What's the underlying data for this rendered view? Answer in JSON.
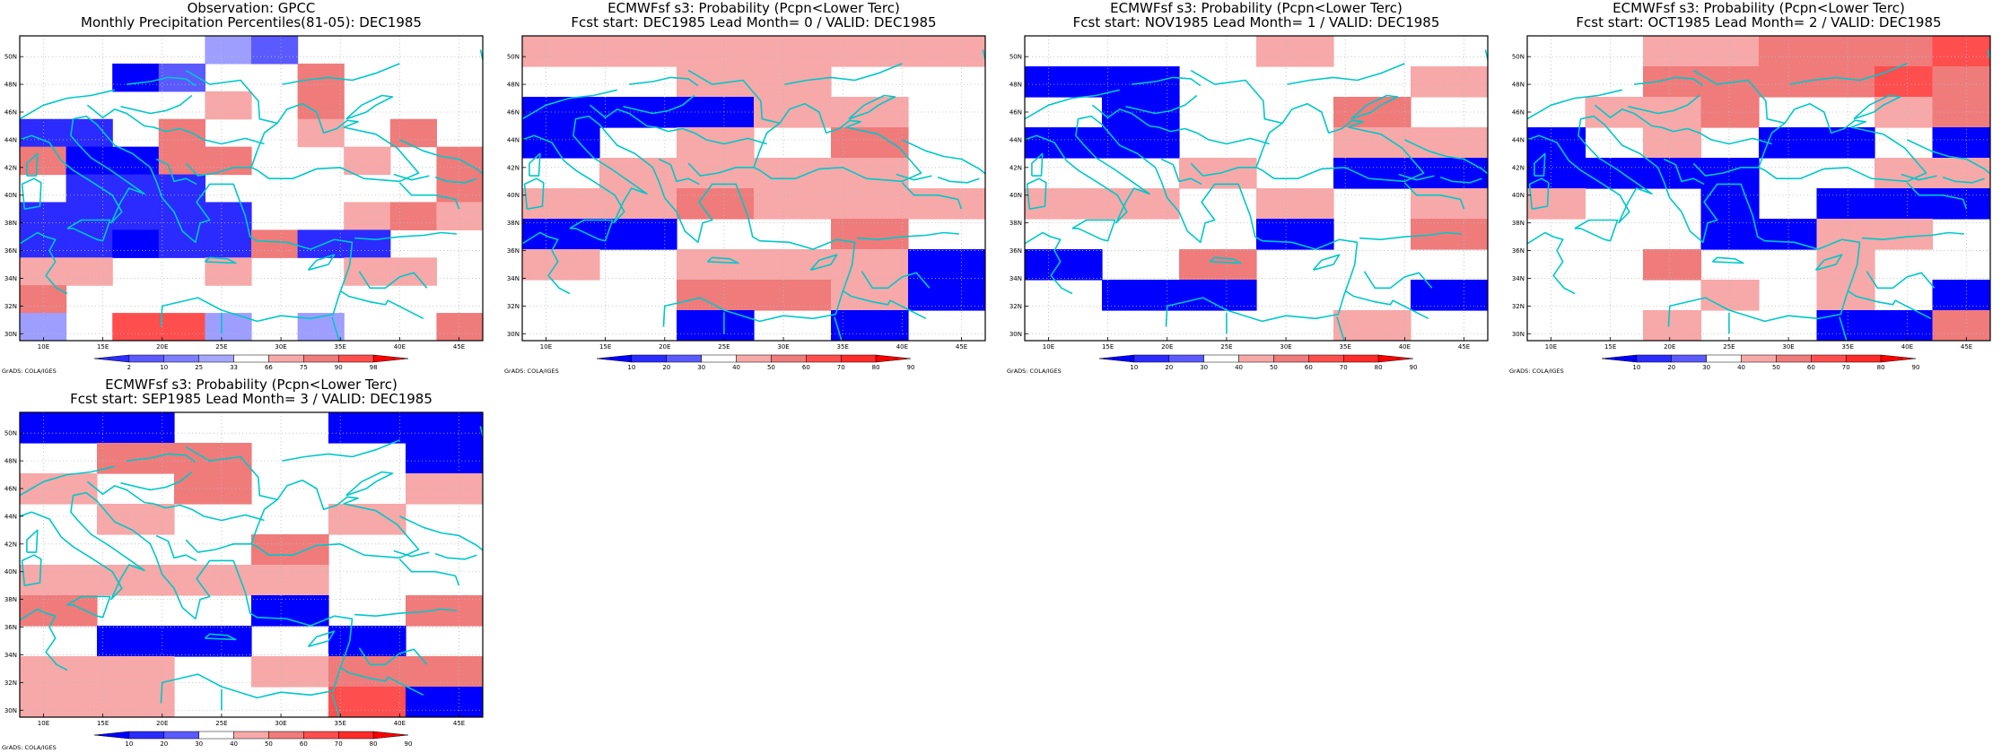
{
  "footer_label": "GrADS: COLA/IGES",
  "lat_labels": [
    "30N",
    "32N",
    "34N",
    "36N",
    "38N",
    "40N",
    "42N",
    "44N",
    "46N",
    "48N",
    "50N"
  ],
  "lon_labels": [
    "10E",
    "15E",
    "20E",
    "25E",
    "30E",
    "35E",
    "40E",
    "45E"
  ],
  "colors": {
    "blue_dark": "#0000ff",
    "blue_mid": "#2b2bff",
    "blue_med": "#5a5aff",
    "blue_light": "#9e9eff",
    "red_light": "#f7a8a8",
    "red_med": "#ef7b7b",
    "red_mid": "#ff4e4e",
    "red_dark": "#ff0000",
    "coast": "#00c8c8"
  },
  "chart_data": [
    {
      "type": "heatmap",
      "title": "Observation: GPCC",
      "subtitle": "Monthly Precipitation Percentiles(81-05): DEC1985",
      "colorbar_labels": [
        "2",
        "10",
        "25",
        "33",
        "66",
        "75",
        "90",
        "98"
      ],
      "colorbar_colors": [
        "#2d2dff",
        "#5a5aff",
        "#7e7eff",
        "#a6a6ff",
        "#ffffff",
        "#f7a8a8",
        "#ef7b7b",
        "#ff4e4e",
        "#ff0000"
      ],
      "grid_values": [
        "....g1....",
        "..b1..d...",
        "....t.d...",
        "cc.d..t.d.",
        "dbbdd..t.d",
        ".ccc.....d",
        "ccccc..tdt",
        "ccbccdcc..",
        "tt..t..tt.",
        "d.........",
        "g.rrg.g..d"
      ]
    },
    {
      "type": "heatmap",
      "title": "ECMWFsf s3: Probability (Pcpn<Lower Terc)",
      "subtitle": "Fcst start: DEC1985  Lead Month= 0 / VALID: DEC1985",
      "colorbar_labels": [
        "10",
        "20",
        "30",
        "40",
        "50",
        "60",
        "70",
        "80",
        "90"
      ],
      "colorbar_colors": [
        "#0000ff",
        "#2b2bff",
        "#5a5aff",
        "#ffffff",
        "#f7a8a8",
        "#ef7b7b",
        "#ff4e4e",
        "#ff2a2a",
        "#ff0000"
      ],
      "grid_values": [
        "tttttt",
        "..tt..",
        "bbbtt.",
        "b.t.d.",
        ".tttt.",
        "ttdttt",
        "bb..d.",
        "t.tttb",
        "..ddtb",
        "..b.b."
      ]
    },
    {
      "type": "heatmap",
      "title": "ECMWFsf s3: Probability (Pcpn<Lower Terc)",
      "subtitle": "Fcst start: NOV1985  Lead Month= 1 / VALID: DEC1985",
      "colorbar_labels": [
        "10",
        "20",
        "30",
        "40",
        "50",
        "60",
        "70",
        "80",
        "90"
      ],
      "colorbar_colors": [
        "#0000ff",
        "#2b2bff",
        "#5a5aff",
        "#ffffff",
        "#f7a8a8",
        "#ef7b7b",
        "#ff4e4e",
        "#ff2a2a",
        "#ff0000"
      ],
      "grid_values": [
        "...t..",
        "bb...t",
        ".b..d.",
        "bb..tt",
        "..t.bb",
        "tt.t.t",
        "...b.d",
        "b.d...",
        ".bb..b",
        "....t."
      ]
    },
    {
      "type": "heatmap",
      "title": "ECMWFsf s3: Probability (Pcpn<Lower Terc)",
      "subtitle": "Fcst start: OCT1985  Lead Month= 2 / VALID: DEC1985",
      "colorbar_labels": [
        "10",
        "20",
        "30",
        "40",
        "50",
        "60",
        "70",
        "80",
        "90"
      ],
      "colorbar_colors": [
        "#0000ff",
        "#2b2bff",
        "#5a5aff",
        "#ffffff",
        "#f7a8a8",
        "#ef7b7b",
        "#ff4e4e",
        "#ff2a2a",
        "#ff0000"
      ],
      "grid_values": [
        "..ttdddr",
        "..ddddrd",
        ".ttd..td",
        "b.t.bb.b",
        "bbbb..tt",
        "t..b.bbb",
        "...bbtt.",
        "..d..t..",
        "...t.t.b",
        "..t..bbd"
      ]
    },
    {
      "type": "heatmap",
      "title": "ECMWFsf s3: Probability (Pcpn<Lower Terc)",
      "subtitle": "Fcst start: SEP1985  Lead Month= 3 / VALID: DEC1985",
      "colorbar_labels": [
        "10",
        "20",
        "30",
        "40",
        "50",
        "60",
        "70",
        "80",
        "90"
      ],
      "colorbar_colors": [
        "#0000ff",
        "#2b2bff",
        "#5a5aff",
        "#ffffff",
        "#f7a8a8",
        "#ef7b7b",
        "#ff4e4e",
        "#ff2a2a",
        "#ff0000"
      ],
      "grid_values": [
        "bb..bb",
        ".dd..b",
        "t.d..t",
        ".t..t.",
        "...d..",
        "tttt..",
        "d..b.d",
        ".bb.b.",
        "tt.tdd",
        "tt..rb"
      ]
    }
  ]
}
